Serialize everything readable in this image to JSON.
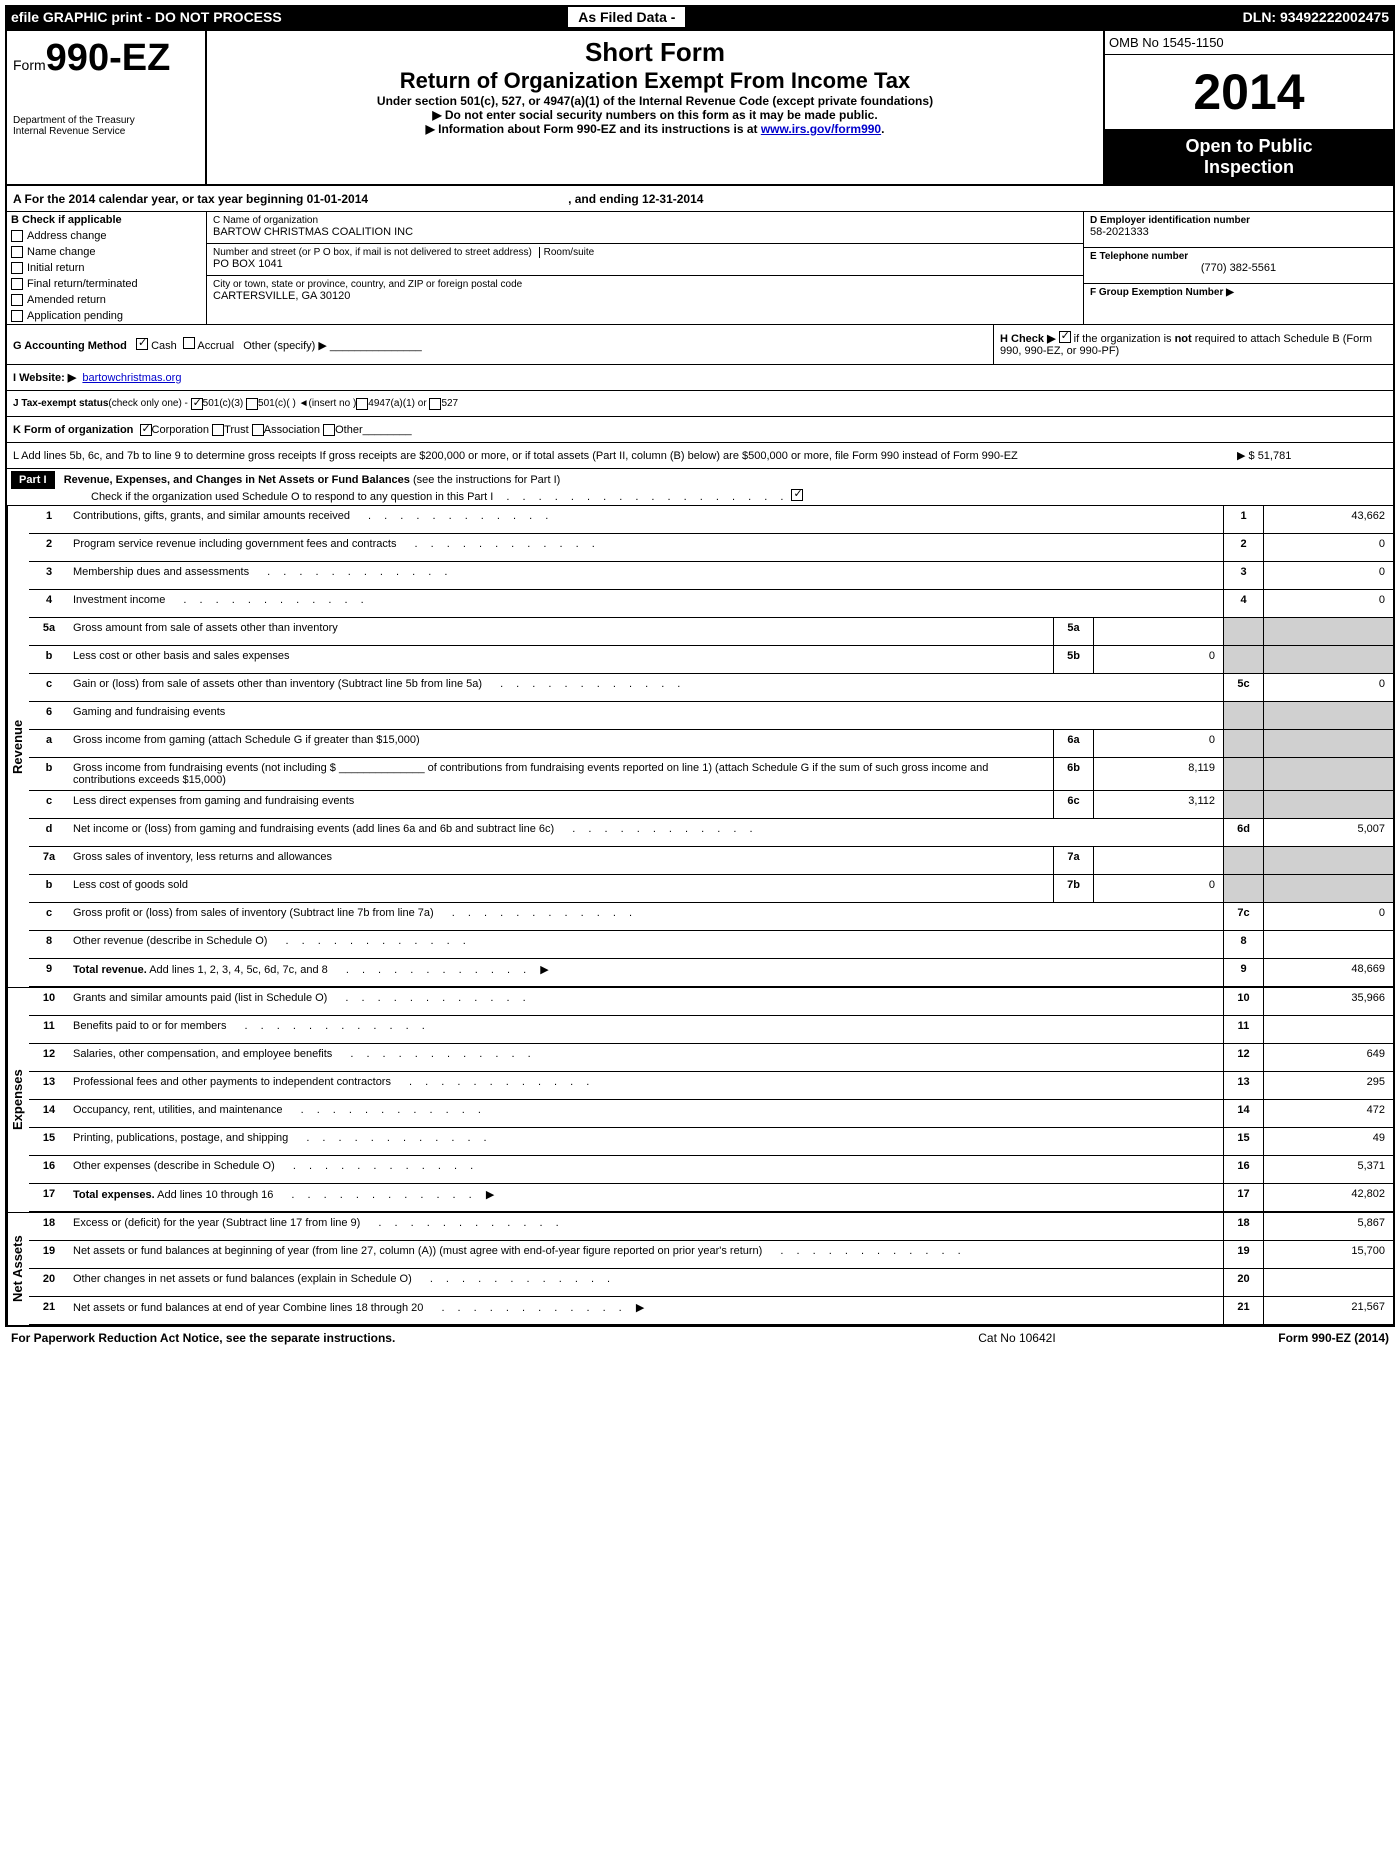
{
  "topbar": {
    "left": "efile GRAPHIC print - DO NOT PROCESS",
    "mid": "As Filed Data -",
    "right": "DLN: 93492222002475"
  },
  "header": {
    "form_prefix": "Form",
    "form_number": "990-EZ",
    "dept1": "Department of the Treasury",
    "dept2": "Internal Revenue Service",
    "short_form": "Short Form",
    "title": "Return of Organization Exempt From Income Tax",
    "subtitle": "Under section 501(c), 527, or 4947(a)(1) of the Internal Revenue Code (except private foundations)",
    "note1": "▶ Do not enter social security numbers on this form as it may be made public.",
    "note2_pre": "▶ Information about Form 990-EZ and its instructions is at ",
    "note2_link": "www.irs.gov/form990",
    "omb": "OMB No 1545-1150",
    "year": "2014",
    "inspection1": "Open to Public",
    "inspection2": "Inspection"
  },
  "sectionA": {
    "a_text": "A  For the 2014 calendar year, or tax year beginning 01-01-2014",
    "a_end": ", and ending 12-31-2014",
    "b_label": "B  Check if applicable",
    "checks": [
      "Address change",
      "Name change",
      "Initial return",
      "Final return/terminated",
      "Amended return",
      "Application pending"
    ],
    "c_label": "C Name of organization",
    "c_value": "BARTOW CHRISTMAS COALITION INC",
    "street_label": "Number and street (or P  O  box, if mail is not delivered to street address)",
    "room_label": "Room/suite",
    "street_value": "PO BOX 1041",
    "city_label": "City or town, state or province, country, and ZIP or foreign postal code",
    "city_value": "CARTERSVILLE, GA  30120",
    "d_label": "D Employer identification number",
    "d_value": "58-2021333",
    "e_label": "E Telephone number",
    "e_value": "(770) 382-5561",
    "f_label": "F Group Exemption Number  ▶"
  },
  "middle": {
    "g": "G Accounting Method",
    "g_cash": "Cash",
    "g_accrual": "Accrual",
    "g_other": "Other (specify) ▶",
    "h_text": "H  Check ▶",
    "h_rest": "if the organization is not required to attach Schedule B (Form 990, 990-EZ, or 990-PF)",
    "i": "I Website: ▶",
    "i_link": "bartowchristmas.org",
    "j": "J Tax-exempt status",
    "j_sub": "(check only one) -",
    "j1": "501(c)(3)",
    "j2": "501(c)(  )  ◄(insert no )",
    "j3": "4947(a)(1) or",
    "j4": "527",
    "k": "K Form of organization",
    "k1": "Corporation",
    "k2": "Trust",
    "k3": "Association",
    "k4": "Other",
    "l": "L Add lines 5b, 6c, and 7b to line 9 to determine gross receipts  If gross receipts are $200,000 or more, or if total assets (Part II, column (B) below) are $500,000 or more, file Form 990 instead of Form 990-EZ",
    "l_val": "▶ $ 51,781"
  },
  "part1": {
    "label": "Part I",
    "title": "Revenue, Expenses, and Changes in Net Assets or Fund Balances",
    "subtitle": "(see the instructions for Part I)",
    "check_text": "Check if the organization used Schedule O to respond to any question in this Part I"
  },
  "sections": {
    "revenue": "Revenue",
    "expenses": "Expenses",
    "netassets": "Net Assets"
  },
  "rows": [
    {
      "n": "1",
      "d": "Contributions, gifts, grants, and similar amounts received",
      "col": "1",
      "v": "43,662"
    },
    {
      "n": "2",
      "d": "Program service revenue including government fees and contracts",
      "col": "2",
      "v": "0"
    },
    {
      "n": "3",
      "d": "Membership dues and assessments",
      "col": "3",
      "v": "0"
    },
    {
      "n": "4",
      "d": "Investment income",
      "col": "4",
      "v": "0"
    },
    {
      "n": "5a",
      "d": "Gross amount from sale of assets other than inventory",
      "mcol": "5a",
      "mv": ""
    },
    {
      "n": "b",
      "d": "Less  cost or other basis and sales expenses",
      "mcol": "5b",
      "mv": "0"
    },
    {
      "n": "c",
      "d": "Gain or (loss) from sale of assets other than inventory (Subtract line 5b from line 5a)",
      "col": "5c",
      "v": "0"
    },
    {
      "n": "6",
      "d": "Gaming and fundraising events"
    },
    {
      "n": "a",
      "d": "Gross income from gaming (attach Schedule G if greater than $15,000)",
      "mcol": "6a",
      "mv": "0"
    },
    {
      "n": "b",
      "d": "Gross income from fundraising events (not including $ ______________ of contributions from fundraising events reported on line 1) (attach Schedule G if the sum of such gross income and contributions exceeds $15,000)",
      "mcol": "6b",
      "mv": "8,119"
    },
    {
      "n": "c",
      "d": "Less  direct expenses from gaming and fundraising events",
      "mcol": "6c",
      "mv": "3,112"
    },
    {
      "n": "d",
      "d": "Net income or (loss) from gaming and fundraising events (add lines 6a and 6b and subtract line 6c)",
      "col": "6d",
      "v": "5,007"
    },
    {
      "n": "7a",
      "d": "Gross sales of inventory, less returns and allowances",
      "mcol": "7a",
      "mv": ""
    },
    {
      "n": "b",
      "d": "Less  cost of goods sold",
      "mcol": "7b",
      "mv": "0"
    },
    {
      "n": "c",
      "d": "Gross profit or (loss) from sales of inventory (Subtract line 7b from line 7a)",
      "col": "7c",
      "v": "0"
    },
    {
      "n": "8",
      "d": "Other revenue (describe in Schedule O)",
      "col": "8",
      "v": ""
    },
    {
      "n": "9",
      "d": "Total revenue. Add lines 1, 2, 3, 4, 5c, 6d, 7c, and 8",
      "bold": true,
      "arrow": true,
      "col": "9",
      "v": "48,669"
    }
  ],
  "expRows": [
    {
      "n": "10",
      "d": "Grants and similar amounts paid (list in Schedule O)",
      "col": "10",
      "v": "35,966"
    },
    {
      "n": "11",
      "d": "Benefits paid to or for members",
      "col": "11",
      "v": ""
    },
    {
      "n": "12",
      "d": "Salaries, other compensation, and employee benefits",
      "col": "12",
      "v": "649"
    },
    {
      "n": "13",
      "d": "Professional fees and other payments to independent contractors",
      "col": "13",
      "v": "295"
    },
    {
      "n": "14",
      "d": "Occupancy, rent, utilities, and maintenance",
      "col": "14",
      "v": "472"
    },
    {
      "n": "15",
      "d": "Printing, publications, postage, and shipping",
      "col": "15",
      "v": "49"
    },
    {
      "n": "16",
      "d": "Other expenses (describe in Schedule O)",
      "col": "16",
      "v": "5,371"
    },
    {
      "n": "17",
      "d": "Total expenses. Add lines 10 through 16",
      "bold": true,
      "arrow": true,
      "col": "17",
      "v": "42,802"
    }
  ],
  "netRows": [
    {
      "n": "18",
      "d": "Excess or (deficit) for the year (Subtract line 17 from line 9)",
      "col": "18",
      "v": "5,867"
    },
    {
      "n": "19",
      "d": "Net assets or fund balances at beginning of year (from line 27, column (A)) (must agree with end-of-year figure reported on prior year's return)",
      "col": "19",
      "v": "15,700"
    },
    {
      "n": "20",
      "d": "Other changes in net assets or fund balances (explain in Schedule O)",
      "col": "20",
      "v": ""
    },
    {
      "n": "21",
      "d": "Net assets or fund balances at end of year  Combine lines 18 through 20",
      "arrow": true,
      "col": "21",
      "v": "21,567"
    }
  ],
  "footer": {
    "left": "For Paperwork Reduction Act Notice, see the separate instructions.",
    "mid": "Cat No  10642I",
    "right": "Form 990-EZ (2014)"
  }
}
